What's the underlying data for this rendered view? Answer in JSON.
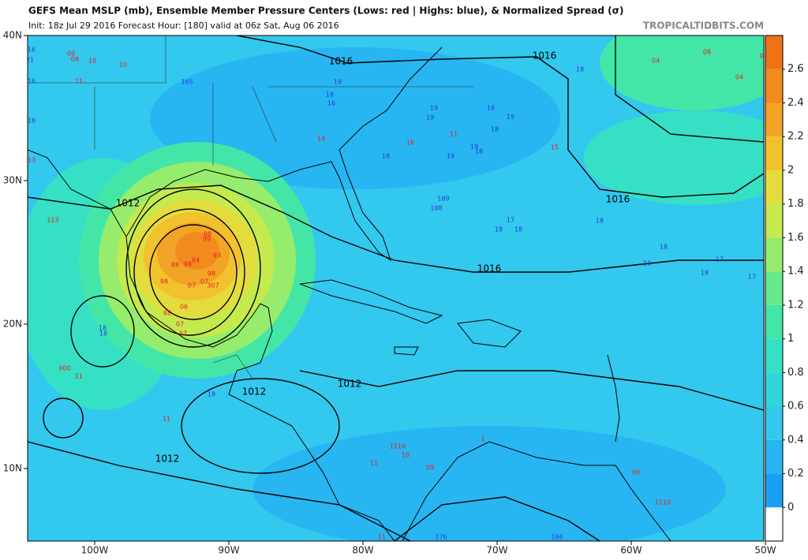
{
  "header": {
    "title": "GEFS Mean MSLP (mb), Ensemble Member Pressure Centers (Lows: red | Highs: blue), & Normalized Spread (σ)",
    "subtitle": "Init: 18z Jul 29 2016   Forecast Hour: [180]   valid at 06z Sat, Aug 06 2016",
    "site": "TROPICALTIDBITS.COM"
  },
  "map": {
    "lat_labels": [
      "40N",
      "30N",
      "20N",
      "10N"
    ],
    "lon_labels": [
      "100W",
      "90W",
      "80W",
      "70W",
      "60W",
      "50W"
    ],
    "contour_labels": [
      "1016",
      "1016",
      "1012",
      "1016",
      "1016",
      "1012",
      "1012",
      "1012"
    ],
    "low_color": "#e8201c",
    "high_color": "#1f3cd8",
    "lows": [
      "09",
      "08",
      "10",
      "10",
      "11",
      "04",
      "08",
      "04",
      "0",
      "14",
      "11",
      "16",
      "15",
      "13",
      "113",
      "98",
      "99",
      "93",
      "84",
      "98",
      "88",
      "98",
      "98",
      "07",
      "07",
      "307",
      "06",
      "88",
      "07",
      "07",
      "000",
      "11",
      "11",
      "1110",
      "10",
      "11",
      "09",
      "09",
      "1110",
      "11",
      "1"
    ],
    "highs": [
      "16",
      "21",
      "16",
      "165",
      "19",
      "18",
      "16",
      "19",
      "19",
      "18",
      "19",
      "18",
      "19",
      "18",
      "19",
      "18",
      "18",
      "189",
      "188",
      "17",
      "18",
      "18",
      "18",
      "16",
      "18",
      "18",
      "17",
      "18",
      "17",
      "18",
      "18",
      "18",
      "176",
      "166"
    ]
  },
  "colorbar": {
    "ticks": [
      0,
      0.2,
      0.4,
      0.6,
      0.8,
      1,
      1.2,
      1.4,
      1.6,
      1.8,
      2,
      2.2,
      2.4,
      2.6
    ],
    "colors": [
      "#ffffff",
      "#1aa0f2",
      "#27b6f2",
      "#33c8ee",
      "#31d6dc",
      "#36e0c4",
      "#44e6a8",
      "#66ea8c",
      "#96ec6c",
      "#c4ea4e",
      "#e4dc3c",
      "#f2c22e",
      "#f2a426",
      "#f28a1e",
      "#f07216"
    ]
  }
}
